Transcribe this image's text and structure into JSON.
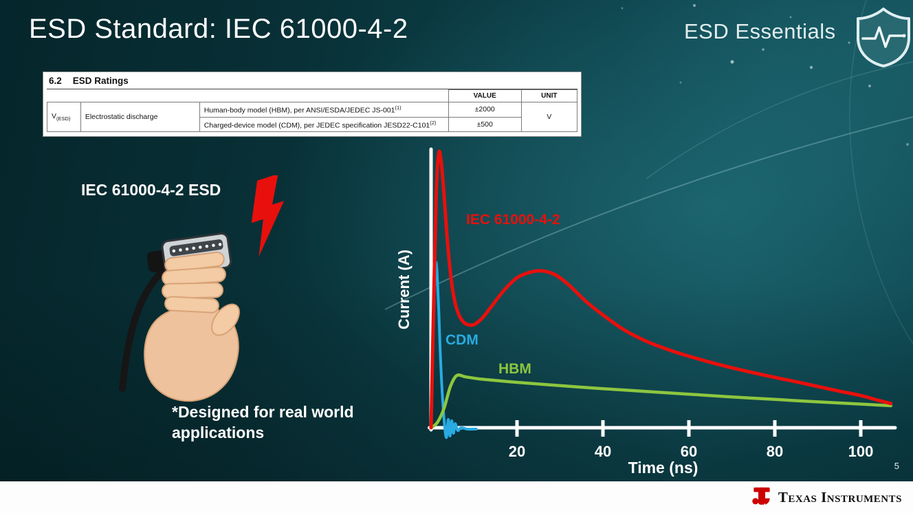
{
  "header": {
    "title": "ESD Standard: IEC 61000-4-2",
    "series_brand": "ESD Essentials"
  },
  "table": {
    "section_no": "6.2",
    "section_title": "ESD Ratings",
    "headers": {
      "value": "VALUE",
      "unit": "UNIT"
    },
    "symbol_base": "V",
    "symbol_sub": "(ESD)",
    "parameter": "Electrostatic discharge",
    "rows": [
      {
        "model": "Human-body model (HBM), per ANSI/ESDA/JEDEC JS-001",
        "ref": "(1)",
        "value": "±2000"
      },
      {
        "model": "Charged-device model (CDM), per JEDEC specification JESD22-C101",
        "ref": "(2)",
        "value": "±500"
      }
    ],
    "unit": "V"
  },
  "illustration": {
    "caption": "IEC 61000-4-2 ESD",
    "note": "*Designed for real world applications"
  },
  "chart_data": {
    "type": "line",
    "xlabel": "Time (ns)",
    "ylabel": "Current (A)",
    "x_ticks": [
      20,
      40,
      60,
      80,
      100
    ],
    "xlim": [
      0,
      108
    ],
    "ylim": [
      0,
      1.05
    ],
    "grid": false,
    "legend": "inline-labels",
    "series": [
      {
        "name": "CDM",
        "color": "#29abe2",
        "width": 4,
        "x": [
          0,
          0.4,
          0.8,
          1.1,
          1.4,
          1.8,
          2.2,
          2.7,
          3.2,
          3.6,
          4,
          4.4,
          4.8,
          5.2,
          5.6,
          6.2,
          7,
          8.5,
          10.5
        ],
        "y": [
          0,
          0.28,
          0.52,
          0.6,
          0.56,
          0.42,
          0.25,
          0.1,
          0,
          -0.035,
          0.03,
          -0.03,
          0.025,
          -0.02,
          0.015,
          -0.01,
          0,
          -0.005,
          -0.005
        ]
      },
      {
        "name": "HBM",
        "color": "#8dc63f",
        "width": 4.5,
        "x": [
          0,
          1.5,
          3,
          4.5,
          6,
          8,
          11,
          15,
          20,
          30,
          40,
          50,
          60,
          70,
          80,
          90,
          100,
          107
        ],
        "y": [
          0,
          0.02,
          0.07,
          0.15,
          0.19,
          0.185,
          0.178,
          0.172,
          0.165,
          0.153,
          0.142,
          0.132,
          0.122,
          0.112,
          0.103,
          0.094,
          0.086,
          0.08
        ]
      },
      {
        "name": "IEC 61000-4-2",
        "color": "#e8100c",
        "width": 5,
        "x": [
          0,
          0.6,
          1.2,
          1.8,
          2.4,
          3,
          3.8,
          4.6,
          5.5,
          6.5,
          7.5,
          8.5,
          10,
          12,
          14,
          17,
          20,
          23,
          26,
          29,
          32,
          36,
          40,
          45,
          50,
          55,
          60,
          65,
          70,
          75,
          80,
          85,
          90,
          95,
          100,
          104,
          107
        ],
        "y": [
          0,
          0.45,
          0.85,
          1,
          0.96,
          0.85,
          0.68,
          0.55,
          0.46,
          0.41,
          0.385,
          0.375,
          0.375,
          0.4,
          0.44,
          0.5,
          0.545,
          0.565,
          0.57,
          0.555,
          0.52,
          0.46,
          0.41,
          0.355,
          0.315,
          0.285,
          0.26,
          0.238,
          0.218,
          0.2,
          0.183,
          0.167,
          0.15,
          0.133,
          0.117,
          0.1,
          0.088
        ]
      }
    ]
  },
  "footer": {
    "page_number": "5",
    "brand": "Texas Instruments"
  }
}
